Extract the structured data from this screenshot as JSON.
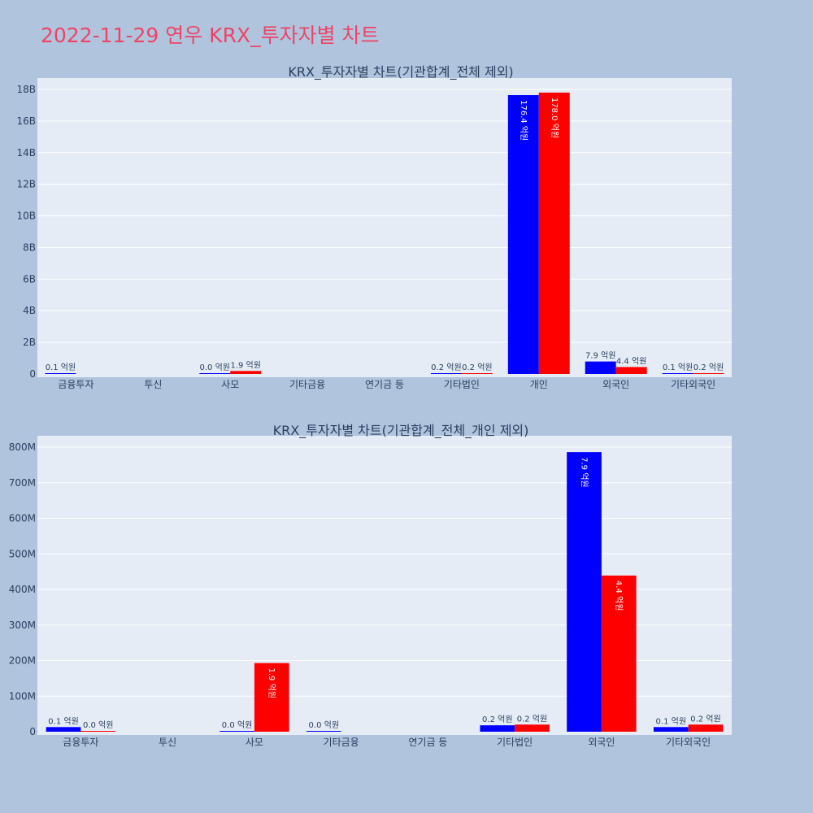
{
  "page_title": "2022-11-29 연우 KRX_투자자별 차트",
  "colors": {
    "background": "#b0c4de",
    "plot_bg": "#e5ecf6",
    "title": "#ee4466",
    "sell": "#0000ff",
    "buy": "#ff0000"
  },
  "chart_data": [
    {
      "type": "bar",
      "title": "KRX_투자자별 차트(기관합계_전체 제외)",
      "categories": [
        "금융투자",
        "투신",
        "사모",
        "기타금융",
        "연기금 등",
        "기타법인",
        "개인",
        "외국인",
        "기타외국인"
      ],
      "ytick_labels": [
        "0",
        "2B",
        "4B",
        "6B",
        "8B",
        "10B",
        "12B",
        "14B",
        "16B",
        "18B"
      ],
      "ylim": [
        0,
        18000000000
      ],
      "ystep": 2000000000,
      "series": [
        {
          "color": "#0000ff",
          "values": [
            10000000,
            null,
            2000000,
            null,
            null,
            20000000,
            17640000000,
            790000000,
            10000000
          ],
          "labels": [
            "0.1 억원",
            "",
            "0.0 억원",
            "",
            "",
            "0.2 억원",
            "176.4 억원",
            "7.9 억원",
            "0.1 억원"
          ]
        },
        {
          "color": "#ff0000",
          "values": [
            null,
            null,
            190000000,
            null,
            null,
            20000000,
            17800000000,
            440000000,
            20000000
          ],
          "labels": [
            "",
            "",
            "1.9 억원",
            "",
            "",
            "0.2 억원",
            "178.0 억원",
            "4.4 억원",
            "0.2 억원"
          ]
        }
      ]
    },
    {
      "type": "bar",
      "title": "KRX_투자자별 차트(기관합계_전체_개인 제외)",
      "categories": [
        "금융투자",
        "투신",
        "사모",
        "기타금융",
        "연기금 등",
        "기타법인",
        "외국인",
        "기타외국인"
      ],
      "ytick_labels": [
        "0",
        "100M",
        "200M",
        "300M",
        "400M",
        "500M",
        "600M",
        "700M",
        "800M"
      ],
      "ylim": [
        0,
        800000000
      ],
      "ystep": 100000000,
      "series": [
        {
          "color": "#0000ff",
          "values": [
            13000000,
            null,
            2000000,
            1000000,
            null,
            18000000,
            786000000,
            13000000
          ],
          "labels": [
            "0.1 억원",
            "",
            "0.0 억원",
            "0.0 억원",
            "",
            "0.2 억원",
            "7.9 억원",
            "0.1 억원"
          ]
        },
        {
          "color": "#ff0000",
          "values": [
            2000000,
            null,
            193000000,
            null,
            null,
            20000000,
            439000000,
            20000000
          ],
          "labels": [
            "0.0 억원",
            "",
            "1.9 억원",
            "",
            "",
            "0.2 억원",
            "4.4 억원",
            "0.2 억원"
          ]
        }
      ]
    }
  ]
}
